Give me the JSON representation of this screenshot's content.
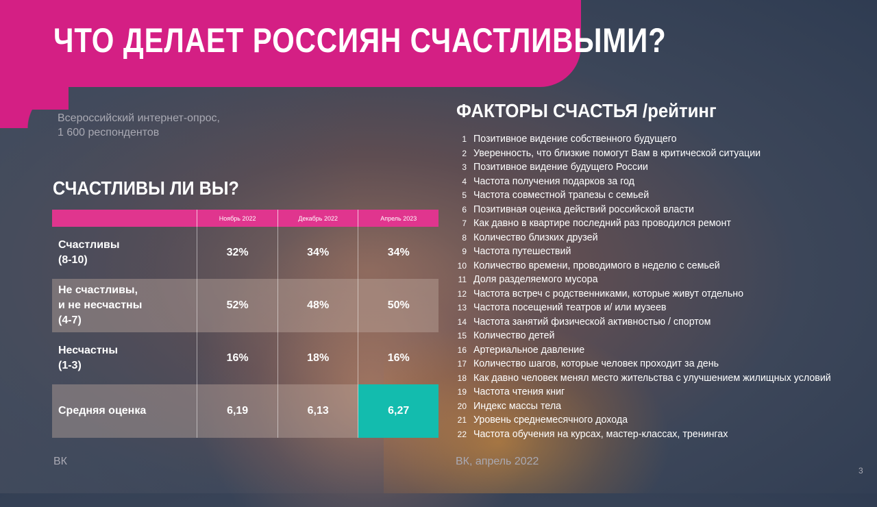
{
  "title": "ЧТО ДЕЛАЕТ РОССИЯН СЧАСТЛИВЫМИ?",
  "survey": {
    "line1": "Всероссийский интернет-опрос,",
    "line2": "1 600 респондентов"
  },
  "happy_section_title": "СЧАСТЛИВЫ ЛИ ВЫ?",
  "table": {
    "columns": [
      "Ноябрь 2022",
      "Декабрь 2022",
      "Апрель 2023"
    ],
    "rows": [
      {
        "label_line1": "Счастливы",
        "label_line2": "(8-10)",
        "label_line3": "",
        "values": [
          "32%",
          "34%",
          "34%"
        ]
      },
      {
        "label_line1": "Не счастливы,",
        "label_line2": "и не несчастны",
        "label_line3": "(4-7)",
        "values": [
          "52%",
          "48%",
          "50%"
        ]
      },
      {
        "label_line1": "Несчастны",
        "label_line2": "(1-3)",
        "label_line3": "",
        "values": [
          "16%",
          "18%",
          "16%"
        ]
      },
      {
        "label_line1": "Средняя оценка",
        "label_line2": "",
        "label_line3": "",
        "values": [
          "6,19",
          "6,13",
          "6,27"
        ]
      }
    ],
    "highlight_color": "#13bcae"
  },
  "factors_title": "ФАКТОРЫ СЧАСТЬЯ /рейтинг",
  "factors": [
    {
      "num": "1",
      "text": "Позитивное видение собственного будущего"
    },
    {
      "num": "2",
      "text": "Уверенность, что близкие помогут Вам в критической ситуации"
    },
    {
      "num": "3",
      "text": "Позитивное видение будущего России"
    },
    {
      "num": "4",
      "text": "Частота получения подарков за год"
    },
    {
      "num": "5",
      "text": "Частота совместной трапезы с семьей"
    },
    {
      "num": "6",
      "text": "Позитивная оценка действий российской власти"
    },
    {
      "num": "7",
      "text": "Как давно в квартире последний раз проводился ремонт"
    },
    {
      "num": "8",
      "text": "Количество близких друзей"
    },
    {
      "num": "9",
      "text": "Частота путешествий"
    },
    {
      "num": "10",
      "text": "Количество времени, проводимого в неделю с семьей"
    },
    {
      "num": "11",
      "text": "Доля разделяемого мусора"
    },
    {
      "num": "12",
      "text": "Частота встреч с родственниками, которые живут отдельно"
    },
    {
      "num": "13",
      "text": "Частота посещений театров и/ или музеев"
    },
    {
      "num": "14",
      "text": "Частота занятий физической активностью / спортом"
    },
    {
      "num": "15",
      "text": "Количество детей"
    },
    {
      "num": "16",
      "text": "Артериальное давление"
    },
    {
      "num": "17",
      "text": "Количество шагов, которые человек проходит за день"
    },
    {
      "num": "18",
      "text": "Как давно человек менял место жительства с улучшением жилищных условий"
    },
    {
      "num": "19",
      "text": "Частота чтения книг"
    },
    {
      "num": "20",
      "text": "Индекс массы тела"
    },
    {
      "num": "21",
      "text": "Уровень среднемесячного дохода"
    },
    {
      "num": "22",
      "text": "Частота обучения на курсах, мастер-классах, тренингах"
    }
  ],
  "footer_left": "ВК",
  "footer_right": "ВК, апрель 2022",
  "page_number": "3",
  "colors": {
    "brand": "#d41f84",
    "accent": "#13bcae"
  }
}
